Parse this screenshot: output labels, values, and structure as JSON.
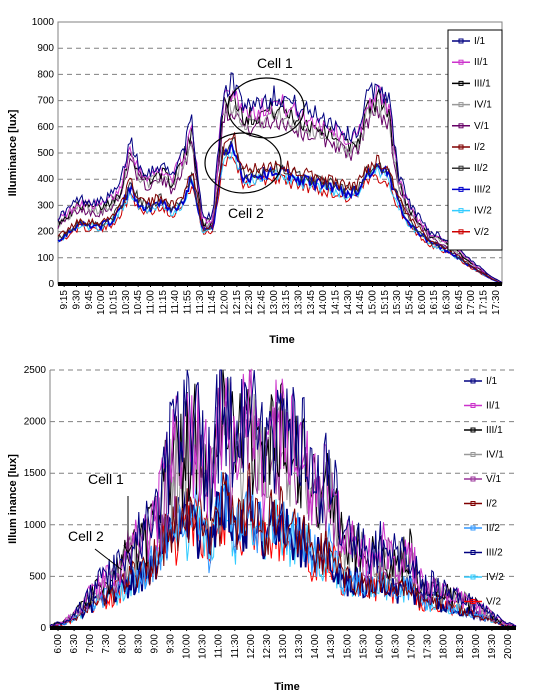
{
  "chart_data": [
    {
      "type": "line",
      "title": "",
      "xlabel": "Time",
      "ylabel": "Illuminance [lux]",
      "ylim": [
        0,
        1000
      ],
      "yticks": [
        "0",
        "100",
        "200",
        "300",
        "400",
        "500",
        "600",
        "700",
        "800",
        "900",
        "1000"
      ],
      "grid": "horizontal-dashed",
      "legend_position": "right",
      "x_ticks": [
        "9:15",
        "9:30",
        "9:45",
        "10:00",
        "10:15",
        "10:30",
        "10:45",
        "11:00",
        "11:15",
        "11:40",
        "11:55",
        "11:30",
        "11:45",
        "12:00",
        "12:15",
        "12:30",
        "12:45",
        "13:00",
        "13:15",
        "13:30",
        "13:45",
        "14:00",
        "14:15",
        "14:30",
        "14:45",
        "15:00",
        "15:15",
        "15:30",
        "15:45",
        "16:00",
        "16:15",
        "16:30",
        "16:45",
        "17:00",
        "17:15",
        "17:30"
      ],
      "annotations": [
        "Cell 1",
        "Cell 2"
      ],
      "series": [
        {
          "name": "I/1",
          "color": "#000080"
        },
        {
          "name": "II/1",
          "color": "#cc33cc"
        },
        {
          "name": "III/1",
          "color": "#000000"
        },
        {
          "name": "IV/1",
          "color": "#999999"
        },
        {
          "name": "V/1",
          "color": "#660066"
        },
        {
          "name": "I/2",
          "color": "#800000"
        },
        {
          "name": "II/2",
          "color": "#333333"
        },
        {
          "name": "III/2",
          "color": "#0000cc"
        },
        {
          "name": "IV/2",
          "color": "#33ccff"
        },
        {
          "name": "V/2",
          "color": "#cc0000"
        }
      ],
      "profiles": {
        "cell1": [
          [
            0,
            255
          ],
          [
            1,
            285
          ],
          [
            2,
            325
          ],
          [
            3,
            318
          ],
          [
            4,
            312
          ],
          [
            5,
            335
          ],
          [
            6,
            375
          ],
          [
            7,
            555
          ],
          [
            8,
            440
          ],
          [
            9,
            430
          ],
          [
            10,
            460
          ],
          [
            11,
            415
          ],
          [
            12,
            500
          ],
          [
            13,
            620
          ],
          [
            14,
            250
          ],
          [
            15,
            260
          ],
          [
            16,
            745
          ],
          [
            17,
            770
          ],
          [
            18,
            690
          ],
          [
            19,
            690
          ],
          [
            20,
            705
          ],
          [
            21,
            720
          ],
          [
            22,
            710
          ],
          [
            23,
            680
          ],
          [
            24,
            660
          ],
          [
            25,
            650
          ],
          [
            26,
            630
          ],
          [
            27,
            610
          ],
          [
            28,
            570
          ],
          [
            29,
            580
          ],
          [
            30,
            720
          ],
          [
            31,
            760
          ],
          [
            32,
            710
          ],
          [
            33,
            420
          ],
          [
            34,
            310
          ],
          [
            35,
            255
          ],
          [
            36,
            200
          ],
          [
            37,
            185
          ],
          [
            38,
            155
          ],
          [
            39,
            125
          ],
          [
            40,
            88
          ],
          [
            41,
            60
          ],
          [
            42,
            28
          ],
          [
            43,
            6
          ]
        ],
        "cell2": [
          [
            0,
            180
          ],
          [
            1,
            210
          ],
          [
            2,
            245
          ],
          [
            3,
            240
          ],
          [
            4,
            235
          ],
          [
            5,
            250
          ],
          [
            6,
            300
          ],
          [
            7,
            390
          ],
          [
            8,
            320
          ],
          [
            9,
            310
          ],
          [
            10,
            340
          ],
          [
            11,
            300
          ],
          [
            12,
            330
          ],
          [
            13,
            440
          ],
          [
            14,
            220
          ],
          [
            15,
            230
          ],
          [
            16,
            530
          ],
          [
            17,
            560
          ],
          [
            18,
            430
          ],
          [
            19,
            440
          ],
          [
            20,
            450
          ],
          [
            21,
            460
          ],
          [
            22,
            450
          ],
          [
            23,
            430
          ],
          [
            24,
            420
          ],
          [
            25,
            410
          ],
          [
            26,
            400
          ],
          [
            27,
            390
          ],
          [
            28,
            370
          ],
          [
            29,
            380
          ],
          [
            30,
            450
          ],
          [
            31,
            470
          ],
          [
            32,
            440
          ],
          [
            33,
            330
          ],
          [
            34,
            250
          ],
          [
            35,
            210
          ],
          [
            36,
            170
          ],
          [
            37,
            150
          ],
          [
            38,
            130
          ],
          [
            39,
            100
          ],
          [
            40,
            70
          ],
          [
            41,
            45
          ],
          [
            42,
            20
          ],
          [
            43,
            4
          ]
        ]
      }
    },
    {
      "type": "line",
      "title": "",
      "xlabel": "Time",
      "ylabel": "Illum inance [lux]",
      "ylim": [
        0,
        2500
      ],
      "yticks": [
        "0",
        "500",
        "1000",
        "1500",
        "2000",
        "2500"
      ],
      "grid": "horizontal-dashed",
      "legend_position": "right",
      "x_ticks": [
        "6:00",
        "6:30",
        "7:00",
        "7:30",
        "8:00",
        "8:30",
        "9:00",
        "9:30",
        "10:00",
        "10:30",
        "11:00",
        "11:30",
        "12:00",
        "12:30",
        "13:00",
        "13:30",
        "14:00",
        "14:30",
        "15:00",
        "15:30",
        "16:00",
        "16:30",
        "17:00",
        "17:30",
        "18:00",
        "18:30",
        "19:00",
        "19:30",
        "20:00"
      ],
      "annotations": [
        "Cell 1",
        "Cell 2"
      ],
      "series": [
        {
          "name": "I/1",
          "color": "#000080"
        },
        {
          "name": "II/1",
          "color": "#cc33cc"
        },
        {
          "name": "III/1",
          "color": "#000000"
        },
        {
          "name": "IV/1",
          "color": "#999999"
        },
        {
          "name": "V/1",
          "color": "#993399"
        },
        {
          "name": "I/2",
          "color": "#800000"
        },
        {
          "name": "II/2",
          "color": "#3399ff"
        },
        {
          "name": "III/2",
          "color": "#000080"
        },
        {
          "name": "IV/2",
          "color": "#33ccff"
        },
        {
          "name": "V/2",
          "color": "#ff0000"
        }
      ],
      "profiles": {
        "cell1": [
          [
            0,
            30
          ],
          [
            1,
            60
          ],
          [
            2,
            160
          ],
          [
            3,
            330
          ],
          [
            4,
            470
          ],
          [
            5,
            560
          ],
          [
            6,
            800
          ],
          [
            7,
            900
          ],
          [
            8,
            1100
          ],
          [
            9,
            1700
          ],
          [
            10,
            1900
          ],
          [
            11,
            2000
          ],
          [
            12,
            1500
          ],
          [
            13,
            2300
          ],
          [
            14,
            1700
          ],
          [
            15,
            2200
          ],
          [
            16,
            1600
          ],
          [
            17,
            2000
          ],
          [
            18,
            1800
          ],
          [
            19,
            1700
          ],
          [
            20,
            1300
          ],
          [
            21,
            1500
          ],
          [
            22,
            900
          ],
          [
            23,
            850
          ],
          [
            24,
            700
          ],
          [
            25,
            820
          ],
          [
            26,
            680
          ],
          [
            27,
            800
          ],
          [
            28,
            400
          ],
          [
            29,
            430
          ],
          [
            30,
            350
          ],
          [
            31,
            300
          ],
          [
            32,
            230
          ],
          [
            33,
            150
          ],
          [
            34,
            60
          ],
          [
            35,
            20
          ]
        ],
        "cell2": [
          [
            0,
            20
          ],
          [
            1,
            40
          ],
          [
            2,
            110
          ],
          [
            3,
            220
          ],
          [
            4,
            300
          ],
          [
            5,
            360
          ],
          [
            6,
            480
          ],
          [
            7,
            550
          ],
          [
            8,
            700
          ],
          [
            9,
            1000
          ],
          [
            10,
            1050
          ],
          [
            11,
            1100
          ],
          [
            12,
            800
          ],
          [
            13,
            1300
          ],
          [
            14,
            900
          ],
          [
            15,
            1200
          ],
          [
            16,
            900
          ],
          [
            17,
            1100
          ],
          [
            18,
            950
          ],
          [
            19,
            900
          ],
          [
            20,
            700
          ],
          [
            21,
            800
          ],
          [
            22,
            500
          ],
          [
            23,
            480
          ],
          [
            24,
            430
          ],
          [
            25,
            480
          ],
          [
            26,
            380
          ],
          [
            27,
            430
          ],
          [
            28,
            250
          ],
          [
            29,
            270
          ],
          [
            30,
            220
          ],
          [
            31,
            180
          ],
          [
            32,
            140
          ],
          [
            33,
            90
          ],
          [
            34,
            40
          ],
          [
            35,
            10
          ]
        ]
      }
    }
  ]
}
